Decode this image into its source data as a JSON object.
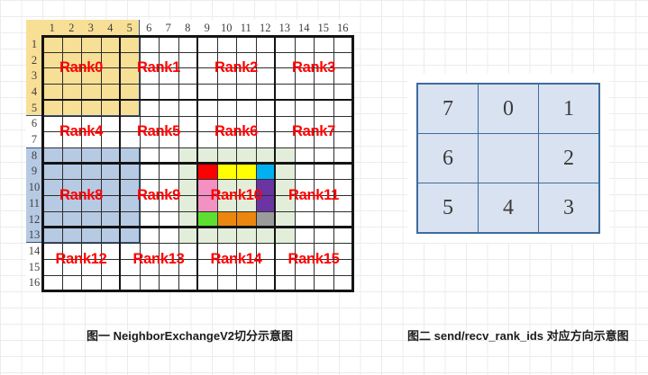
{
  "figure1": {
    "grid_size": 16,
    "block_size": 4,
    "col_headers": [
      "1",
      "2",
      "3",
      "4",
      "5",
      "6",
      "7",
      "8",
      "9",
      "10",
      "11",
      "12",
      "13",
      "14",
      "15",
      "16"
    ],
    "row_headers": [
      "1",
      "2",
      "3",
      "4",
      "5",
      "6",
      "7",
      "8",
      "9",
      "10",
      "11",
      "12",
      "13",
      "14",
      "15",
      "16"
    ],
    "rank_label_color": "#ff0000",
    "ranks": [
      {
        "label": "Rank0",
        "block_col": 0,
        "block_row": 0
      },
      {
        "label": "Rank1",
        "block_col": 1,
        "block_row": 0
      },
      {
        "label": "Rank2",
        "block_col": 2,
        "block_row": 0
      },
      {
        "label": "Rank3",
        "block_col": 3,
        "block_row": 0
      },
      {
        "label": "Rank4",
        "block_col": 0,
        "block_row": 1
      },
      {
        "label": "Rank5",
        "block_col": 1,
        "block_row": 1
      },
      {
        "label": "Rank6",
        "block_col": 2,
        "block_row": 1
      },
      {
        "label": "Rank7",
        "block_col": 3,
        "block_row": 1
      },
      {
        "label": "Rank8",
        "block_col": 0,
        "block_row": 2
      },
      {
        "label": "Rank9",
        "block_col": 1,
        "block_row": 2
      },
      {
        "label": "Rank10",
        "block_col": 2,
        "block_row": 2
      },
      {
        "label": "Rank11",
        "block_col": 3,
        "block_row": 2
      },
      {
        "label": "Rank12",
        "block_col": 0,
        "block_row": 3
      },
      {
        "label": "Rank13",
        "block_col": 1,
        "block_row": 3
      },
      {
        "label": "Rank14",
        "block_col": 2,
        "block_row": 3
      },
      {
        "label": "Rank15",
        "block_col": 3,
        "block_row": 3
      }
    ],
    "halos": [
      {
        "name": "rank0-halo-yellow",
        "color": "#f8df96",
        "col_start": 0,
        "row_start": 0,
        "col_end": 5,
        "row_end": 5,
        "outline": "#33517e",
        "outline_sides": [
          "right",
          "bottom"
        ]
      },
      {
        "name": "rank8-halo-blue",
        "color": "#b7cae4",
        "col_start": 0,
        "row_start": 8,
        "col_end": 5,
        "row_end": 13,
        "outline": "#33517e",
        "outline_sides": [
          "top",
          "right",
          "bottom"
        ]
      },
      {
        "name": "rank10-halo-green",
        "color": "#e3eeda",
        "col_start": 8,
        "row_start": 8,
        "col_end": 13,
        "row_end": 13,
        "outline": null,
        "outline_sides": []
      }
    ],
    "colored_cells": [
      {
        "name": "red-cell",
        "col": 9,
        "row": 9,
        "color": "#ff0000"
      },
      {
        "name": "yellow-cell",
        "col": 10,
        "row": 9,
        "color": "#ffff00"
      },
      {
        "name": "yellow-cell",
        "col": 11,
        "row": 9,
        "color": "#ffff00"
      },
      {
        "name": "cyan-cell",
        "col": 12,
        "row": 9,
        "color": "#00b0f0"
      },
      {
        "name": "pink-cell",
        "col": 9,
        "row": 10,
        "color": "#f391c3"
      },
      {
        "name": "purple-cell",
        "col": 12,
        "row": 10,
        "color": "#6a35a3"
      },
      {
        "name": "pink-cell",
        "col": 9,
        "row": 11,
        "color": "#f391c3"
      },
      {
        "name": "purple-cell",
        "col": 12,
        "row": 11,
        "color": "#6a35a3"
      },
      {
        "name": "green-cell",
        "col": 9,
        "row": 12,
        "color": "#5cdf30"
      },
      {
        "name": "orange-cell",
        "col": 10,
        "row": 12,
        "color": "#ec860e"
      },
      {
        "name": "orange-cell",
        "col": 11,
        "row": 12,
        "color": "#ec860e"
      },
      {
        "name": "gray-cell",
        "col": 12,
        "row": 12,
        "color": "#9b9b9b"
      }
    ],
    "gridline_color": "#2e2e2e",
    "block_border_color": "#141414"
  },
  "figure2": {
    "rows": [
      [
        "7",
        "0",
        "1"
      ],
      [
        "6",
        "",
        "2"
      ],
      [
        "5",
        "4",
        "3"
      ]
    ],
    "cell_fill": "#d9e2f0",
    "border_color": "#3d6c9e"
  },
  "captions": {
    "figure1": "图一  NeighborExchangeV2切分示意图",
    "figure2": "图二  send/recv_rank_ids 对应方向示意图"
  }
}
